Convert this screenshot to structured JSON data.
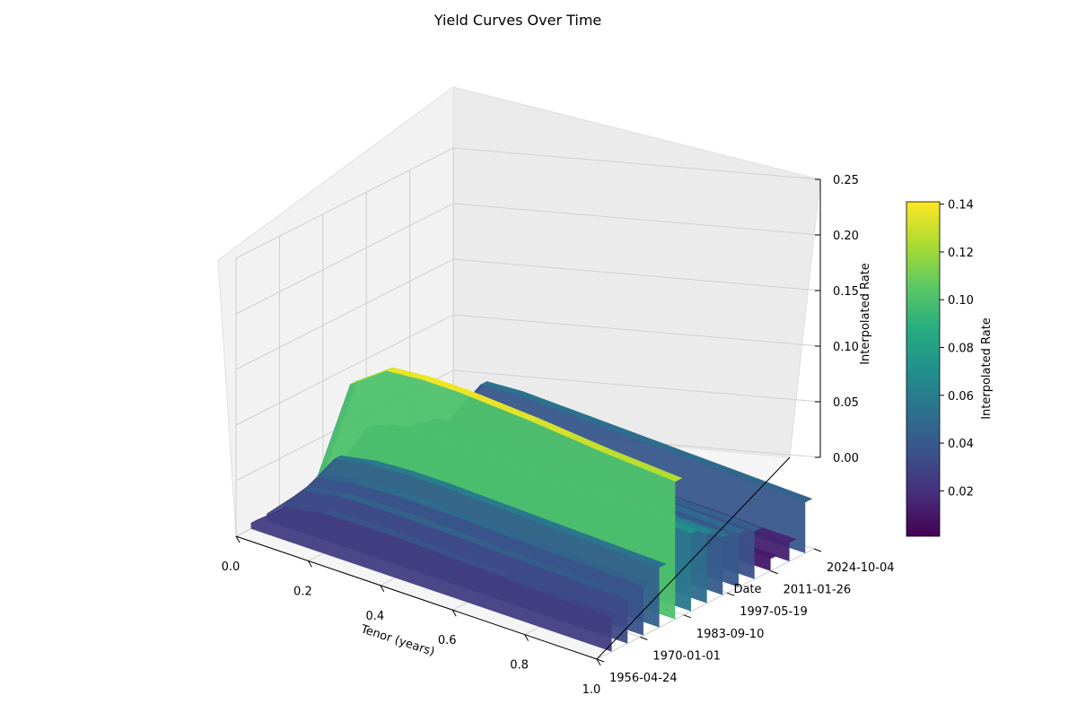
{
  "chart_data": {
    "type": "surface3d",
    "title": "Yield Curves Over Time",
    "xlabel": "Tenor (years)",
    "ylabel": "Date",
    "zlabel": "Interpolated Rate",
    "colorbar_label": "Interpolated Rate",
    "colormap": "viridis",
    "xlim": [
      0.0,
      1.0
    ],
    "zlim": [
      0.0,
      0.25
    ],
    "x_ticks": [
      "0.0",
      "0.2",
      "0.4",
      "0.6",
      "0.8",
      "1.0"
    ],
    "y_ticks": [
      "1956-04-24",
      "1970-01-01",
      "1983-09-10",
      "1997-05-19",
      "2011-01-26",
      "2024-10-04"
    ],
    "z_ticks": [
      "0.00",
      "0.05",
      "0.10",
      "0.15",
      "0.20",
      "0.25"
    ],
    "colorbar_range": [
      0.001,
      0.141
    ],
    "colorbar_ticks": [
      "0.02",
      "0.04",
      "0.06",
      "0.08",
      "0.10",
      "0.12",
      "0.14"
    ],
    "series": [
      {
        "date": "1961-01-01",
        "rates": [
          0.005,
          0.03,
          0.036,
          0.037,
          0.037,
          0.036,
          0.035,
          0.034,
          0.032,
          0.031,
          0.03
        ]
      },
      {
        "date": "1966-01-01",
        "rates": [
          0.006,
          0.038,
          0.044,
          0.045,
          0.045,
          0.044,
          0.043,
          0.042,
          0.041,
          0.04,
          0.039
        ]
      },
      {
        "date": "1971-01-01",
        "rates": [
          0.007,
          0.042,
          0.048,
          0.05,
          0.05,
          0.049,
          0.048,
          0.047,
          0.046,
          0.045,
          0.044
        ]
      },
      {
        "date": "1976-01-01",
        "rates": [
          0.008,
          0.052,
          0.058,
          0.06,
          0.06,
          0.059,
          0.058,
          0.057,
          0.056,
          0.055,
          0.054
        ]
      },
      {
        "date": "1981-01-01",
        "rates": [
          0.01,
          0.112,
          0.135,
          0.138,
          0.138,
          0.136,
          0.134,
          0.131,
          0.128,
          0.126,
          0.124
        ]
      },
      {
        "date": "1986-01-01",
        "rates": [
          0.009,
          0.065,
          0.074,
          0.076,
          0.076,
          0.075,
          0.074,
          0.073,
          0.072,
          0.071,
          0.07
        ]
      },
      {
        "date": "1991-01-01",
        "rates": [
          0.008,
          0.058,
          0.066,
          0.068,
          0.068,
          0.067,
          0.066,
          0.065,
          0.064,
          0.063,
          0.062
        ]
      },
      {
        "date": "1996-01-01",
        "rates": [
          0.007,
          0.048,
          0.054,
          0.056,
          0.056,
          0.055,
          0.055,
          0.054,
          0.053,
          0.052,
          0.052
        ]
      },
      {
        "date": "2001-01-01",
        "rates": [
          0.006,
          0.046,
          0.052,
          0.053,
          0.053,
          0.052,
          0.051,
          0.05,
          0.05,
          0.049,
          0.048
        ]
      },
      {
        "date": "2006-01-01",
        "rates": [
          0.005,
          0.042,
          0.046,
          0.047,
          0.047,
          0.046,
          0.046,
          0.045,
          0.044,
          0.044,
          0.043
        ]
      },
      {
        "date": "2011-01-26",
        "rates": [
          0.002,
          0.01,
          0.012,
          0.013,
          0.013,
          0.013,
          0.012,
          0.012,
          0.012,
          0.011,
          0.011
        ]
      },
      {
        "date": "2017-01-01",
        "rates": [
          0.003,
          0.015,
          0.018,
          0.019,
          0.019,
          0.019,
          0.018,
          0.018,
          0.018,
          0.017,
          0.017
        ]
      },
      {
        "date": "2022-01-01",
        "rates": [
          0.004,
          0.052,
          0.054,
          0.053,
          0.052,
          0.051,
          0.05,
          0.049,
          0.048,
          0.047,
          0.046
        ]
      }
    ],
    "grid": true,
    "colorbar_placement": "right"
  }
}
